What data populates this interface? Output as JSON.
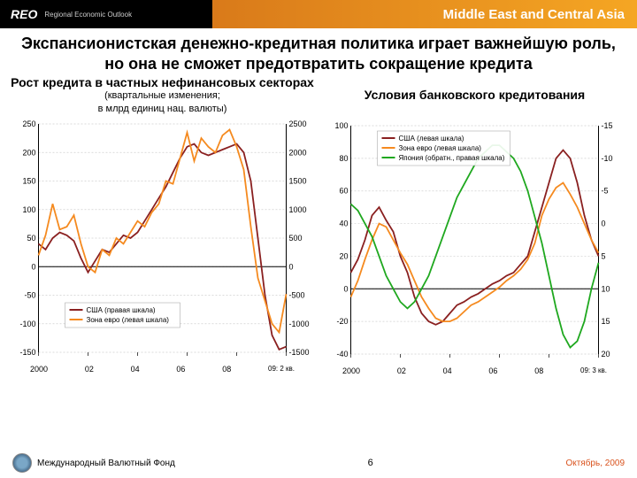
{
  "header": {
    "logo": "REO",
    "logo_sub": "Regional Economic Outlook",
    "region": "Middle East and Central Asia"
  },
  "title": "Экспансионистская денежно-кредитная политика играет важнейшую роль, но она не сможет предотвратить сокращение кредита",
  "leftChart": {
    "title": "Рост кредита в частных нефинансовых секторах",
    "sub1": "(квартальные изменения;",
    "sub2": "в млрд единиц нац. валюты)",
    "type": "line",
    "yLeft": {
      "min": -150,
      "max": 250,
      "step": 50
    },
    "yRight": {
      "min": -1500,
      "max": 2500,
      "step": 500
    },
    "xLabels": [
      "2000",
      "02",
      "04",
      "06",
      "08",
      "09: 2 кв."
    ],
    "legend": [
      {
        "label": "США (правая шкала)",
        "color": "#8a2020"
      },
      {
        "label": "Зона евро (левая шкала)",
        "color": "#f58a1f"
      }
    ],
    "series": {
      "usa": [
        40,
        30,
        50,
        60,
        55,
        45,
        15,
        -10,
        10,
        30,
        25,
        40,
        55,
        50,
        60,
        80,
        100,
        120,
        140,
        165,
        190,
        210,
        215,
        200,
        195,
        200,
        205,
        210,
        215,
        200,
        150,
        50,
        -50,
        -120,
        -145,
        -140
      ],
      "euro": [
        20,
        55,
        110,
        65,
        70,
        90,
        40,
        0,
        -10,
        30,
        20,
        50,
        40,
        60,
        80,
        70,
        95,
        110,
        150,
        145,
        190,
        235,
        185,
        225,
        210,
        200,
        230,
        240,
        210,
        170,
        70,
        -20,
        -60,
        -100,
        -115,
        -48
      ]
    },
    "colors": {
      "usa": "#8a2020",
      "euro": "#f58a1f",
      "grid": "#cfcfcf",
      "axis": "#000000"
    }
  },
  "rightChart": {
    "title": "Условия банковского кредитования",
    "type": "line",
    "yLeft": {
      "min": -40,
      "max": 100,
      "step": 20
    },
    "yRight": {
      "min": -15,
      "max": 20,
      "step": 5,
      "inverted": true
    },
    "xLabels": [
      "2000",
      "02",
      "04",
      "06",
      "08",
      "09: 3 кв."
    ],
    "legend": [
      {
        "label": "США (левая шкала)",
        "color": "#8a2020"
      },
      {
        "label": "Зона евро (левая шкала)",
        "color": "#f58a1f"
      },
      {
        "label": "Япония (обратн., правая шкала)",
        "color": "#1fa81f"
      }
    ],
    "series": {
      "usa": [
        10,
        18,
        30,
        45,
        50,
        42,
        35,
        20,
        10,
        -5,
        -15,
        -20,
        -22,
        -20,
        -15,
        -10,
        -8,
        -5,
        -3,
        0,
        3,
        5,
        8,
        10,
        15,
        20,
        35,
        50,
        65,
        80,
        85,
        80,
        65,
        45,
        30,
        20
      ],
      "euro": [
        -5,
        5,
        18,
        30,
        40,
        38,
        30,
        22,
        15,
        5,
        -5,
        -12,
        -18,
        -20,
        -20,
        -18,
        -14,
        -10,
        -8,
        -5,
        -2,
        1,
        5,
        8,
        12,
        18,
        28,
        45,
        55,
        62,
        65,
        58,
        50,
        40,
        30,
        22
      ],
      "japan": [
        -3,
        -2,
        0,
        2,
        5,
        8,
        10,
        12,
        13,
        12,
        10,
        8,
        5,
        2,
        -1,
        -4,
        -6,
        -8,
        -10,
        -11,
        -12,
        -12,
        -11,
        -10,
        -8,
        -5,
        -1,
        3,
        8,
        13,
        17,
        19,
        18,
        15,
        10,
        6
      ]
    },
    "colors": {
      "usa": "#8a2020",
      "euro": "#f58a1f",
      "japan": "#1fa81f",
      "grid": "#cfcfcf",
      "axis": "#000000"
    }
  },
  "footer": {
    "org": "Международный Валютный Фонд",
    "page": "6",
    "date": "Октябрь, 2009"
  }
}
